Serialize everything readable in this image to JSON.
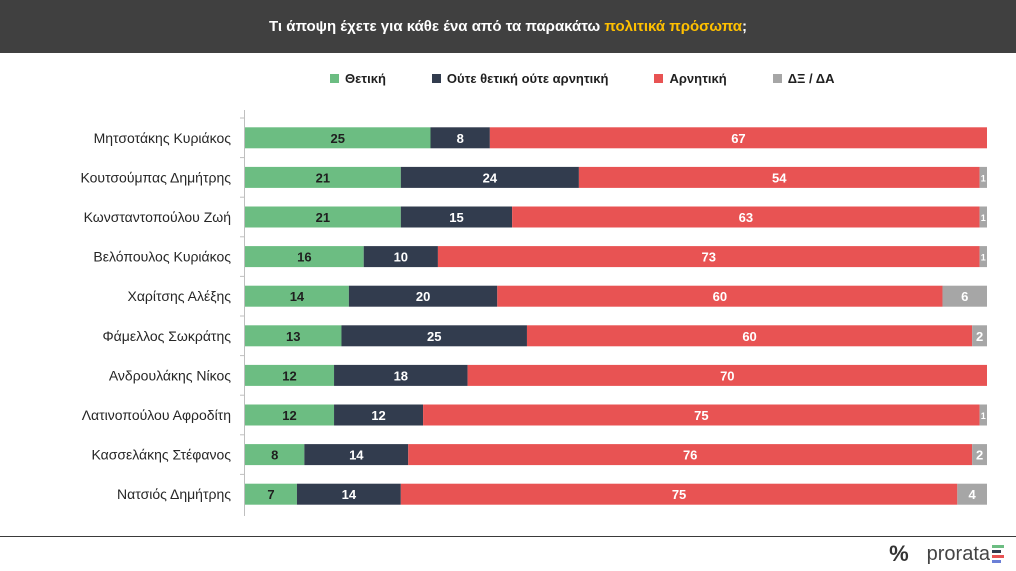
{
  "header": {
    "title_prefix": "Τι άποψη έχετε για κάθε ένα από τα παρακάτω ",
    "title_highlight": "πολιτικά πρόσωπα",
    "title_suffix": ";"
  },
  "colors": {
    "positive": "#6cbd82",
    "neutral": "#323c4e",
    "negative": "#e85353",
    "dk": "#a6a6a6",
    "highlight": "#ffc000"
  },
  "chart_data": {
    "type": "bar",
    "orientation": "horizontal-stacked-100",
    "xlim": [
      0,
      100
    ],
    "legend_position": "top",
    "series": [
      {
        "name": "Θετική",
        "values": [
          25,
          21,
          21,
          16,
          14,
          13,
          12,
          12,
          8,
          7
        ]
      },
      {
        "name": "Ούτε θετική ούτε αρνητική",
        "values": [
          8,
          24,
          15,
          10,
          20,
          25,
          18,
          12,
          14,
          14
        ]
      },
      {
        "name": "Αρνητική",
        "values": [
          67,
          54,
          63,
          73,
          60,
          60,
          70,
          75,
          76,
          75
        ]
      },
      {
        "name": "ΔΞ / ΔΑ",
        "values": [
          0,
          1,
          1,
          1,
          6,
          2,
          0,
          1,
          2,
          4
        ]
      }
    ],
    "categories": [
      "Μητσοτάκης Κυριάκος",
      "Κουτσούμπας Δημήτρης",
      "Κωνσταντοπούλου Ζωή",
      "Βελόπουλος Κυριάκος",
      "Χαρίτσης Αλέξης",
      "Φάμελλος Σωκράτης",
      "Ανδρουλάκης Νίκος",
      "Λατινοπούλου Αφροδίτη",
      "Κασσελάκης Στέφανος",
      "Νατσιός Δημήτρης"
    ]
  },
  "brand": {
    "symbol": "%",
    "name": "prorata"
  }
}
